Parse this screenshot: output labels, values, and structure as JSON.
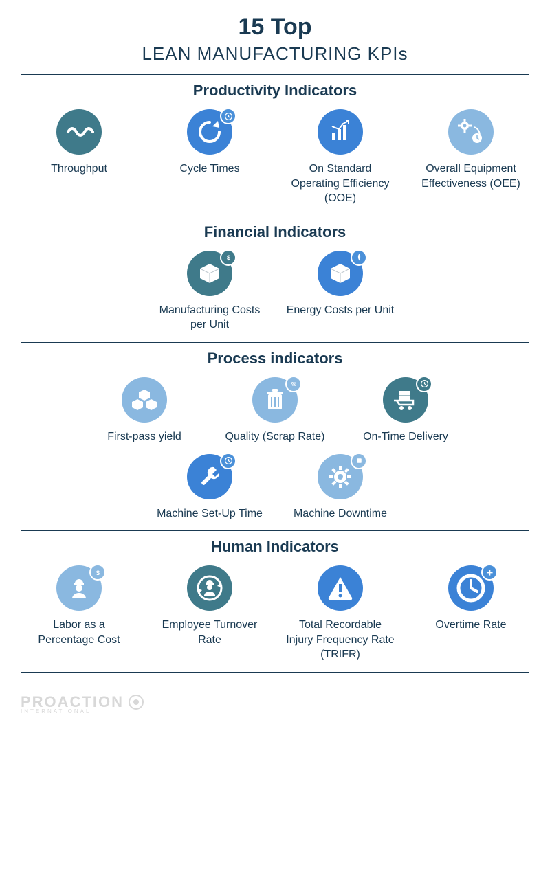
{
  "colors": {
    "text": "#1a3a52",
    "divider": "#1a3a52",
    "teal": "#3f7a8a",
    "blue": "#3b82d6",
    "lightblue": "#8ab8e0",
    "badge_blue": "#4a90d9",
    "badge_teal": "#3f7a8a",
    "footer_grey": "#d8d8d8"
  },
  "header": {
    "title_top": "15 Top",
    "title_sub": "LEAN MANUFACTURING KPIs"
  },
  "sections": [
    {
      "title": "Productivity Indicators",
      "rows": [
        [
          {
            "label": "Throughput",
            "icon": "wave",
            "color": "#3f7a8a",
            "badge": null
          },
          {
            "label": "Cycle Times",
            "icon": "refresh",
            "color": "#3b82d6",
            "badge": {
              "type": "clock",
              "color": "#4a90d9"
            }
          },
          {
            "label": "On Standard Operating Efficiency (OOE)",
            "icon": "chart",
            "color": "#3b82d6",
            "badge": null
          },
          {
            "label": "Overall Equipment Effectiveness (OEE)",
            "icon": "gear-clock",
            "color": "#8ab8e0",
            "badge": null
          }
        ]
      ]
    },
    {
      "title": "Financial Indicators",
      "rows": [
        [
          {
            "label": "Manufacturing Costs per Unit",
            "icon": "box",
            "color": "#3f7a8a",
            "badge": {
              "type": "dollar",
              "color": "#3f7a8a"
            }
          },
          {
            "label": "Energy Costs per Unit",
            "icon": "box",
            "color": "#3b82d6",
            "badge": {
              "type": "leaf",
              "color": "#4a90d9"
            }
          }
        ]
      ]
    },
    {
      "title": "Process indicators",
      "rows": [
        [
          {
            "label": "First-pass yield",
            "icon": "cubes",
            "color": "#8ab8e0",
            "badge": null
          },
          {
            "label": "Quality (Scrap Rate)",
            "icon": "trash",
            "color": "#8ab8e0",
            "badge": {
              "type": "percent",
              "color": "#8ab8e0"
            }
          },
          {
            "label": "On-Time Delivery",
            "icon": "cart",
            "color": "#3f7a8a",
            "badge": {
              "type": "clock",
              "color": "#3f7a8a"
            }
          }
        ],
        [
          {
            "label": "Machine Set-Up Time",
            "icon": "wrench",
            "color": "#3b82d6",
            "badge": {
              "type": "clock",
              "color": "#4a90d9"
            }
          },
          {
            "label": "Machine Downtime",
            "icon": "gear",
            "color": "#8ab8e0",
            "badge": {
              "type": "stop",
              "color": "#8ab8e0"
            }
          }
        ]
      ]
    },
    {
      "title": "Human Indicators",
      "rows": [
        [
          {
            "label": "Labor as a Percentage Cost",
            "icon": "worker",
            "color": "#8ab8e0",
            "badge": {
              "type": "dollar",
              "color": "#8ab8e0"
            }
          },
          {
            "label": "Employee Turnover Rate",
            "icon": "worker-cycle",
            "color": "#3f7a8a",
            "badge": null
          },
          {
            "label": "Total Recordable Injury Frequency Rate (TRIFR)",
            "icon": "alert",
            "color": "#3b82d6",
            "badge": null
          },
          {
            "label": "Overtime Rate",
            "icon": "clock",
            "color": "#3b82d6",
            "badge": {
              "type": "plus",
              "color": "#4a90d9"
            }
          }
        ]
      ]
    }
  ],
  "footer": {
    "brand": "PROACTION",
    "sub": "INTERNATIONAL"
  }
}
